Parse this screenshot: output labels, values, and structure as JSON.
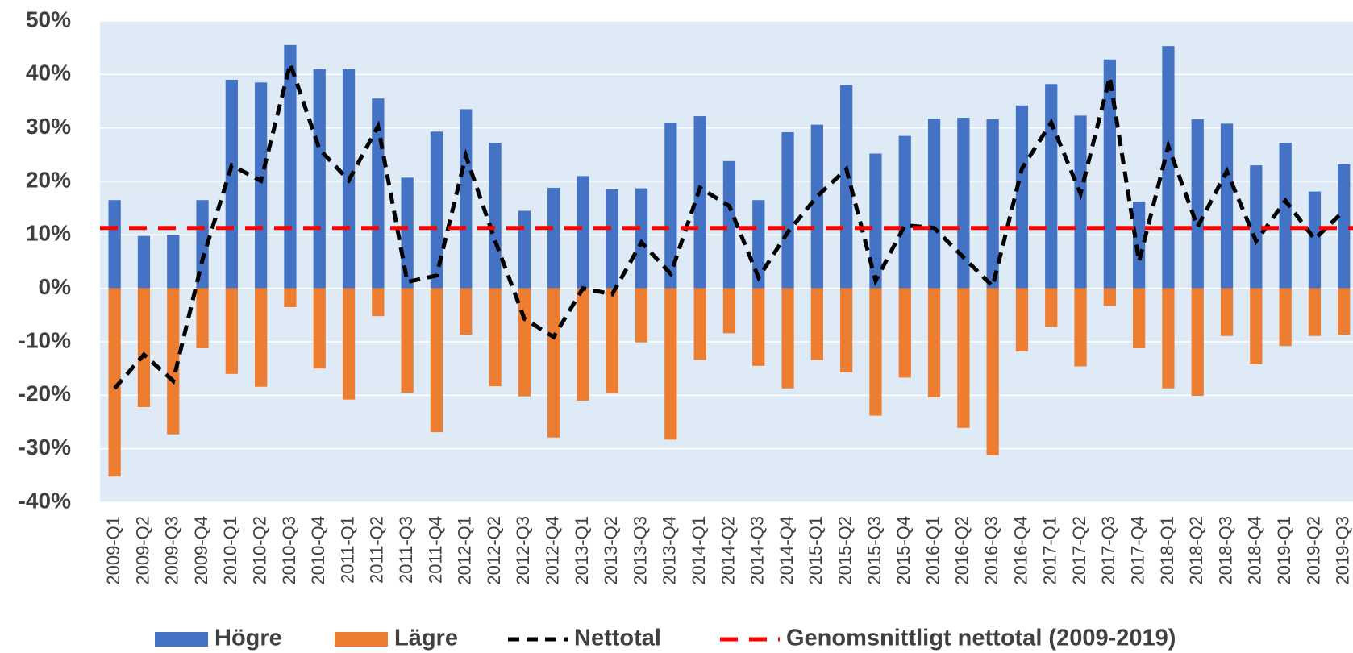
{
  "chart_data": {
    "type": "bar",
    "categories": [
      "2009-Q1",
      "2009-Q2",
      "2009-Q3",
      "2009-Q4",
      "2010-Q1",
      "2010-Q2",
      "2010-Q3",
      "2010-Q4",
      "2011-Q1",
      "2011-Q2",
      "2011-Q3",
      "2011-Q4",
      "2012-Q1",
      "2012-Q2",
      "2012-Q3",
      "2012-Q4",
      "2013-Q1",
      "2013-Q2",
      "2013-Q3",
      "2013-Q4",
      "2014-Q1",
      "2014-Q2",
      "2014-Q3",
      "2014-Q4",
      "2015-Q1",
      "2015-Q2",
      "2015-Q3",
      "2015-Q4",
      "2016-Q1",
      "2016-Q2",
      "2016-Q3",
      "2016-Q4",
      "2017-Q1",
      "2017-Q2",
      "2017-Q3",
      "2017-Q4",
      "2018-Q1",
      "2018-Q2",
      "2018-Q3",
      "2018-Q4",
      "2019-Q1",
      "2019-Q2",
      "2019-Q3"
    ],
    "series": [
      {
        "name": "Högre",
        "type": "bar",
        "color": "#4472c4",
        "values": [
          16.5,
          9.8,
          10,
          16.5,
          39,
          38.5,
          45.5,
          41,
          41,
          35.5,
          20.7,
          29.3,
          33.5,
          27.2,
          14.5,
          18.8,
          21,
          18.5,
          18.7,
          31,
          32.2,
          23.8,
          16.5,
          29.2,
          30.6,
          38,
          25.2,
          28.5,
          31.7,
          31.9,
          31.6,
          34.2,
          38.2,
          32.3,
          42.8,
          16.2,
          45.3,
          31.6,
          30.8,
          23,
          27.2,
          18.1,
          23.2
        ]
      },
      {
        "name": "Lägre",
        "type": "bar",
        "color": "#ed7d31",
        "values": [
          -35.2,
          -22.2,
          -27.3,
          -11.2,
          -16,
          -18.4,
          -3.5,
          -15,
          -20.8,
          -5.2,
          -19.5,
          -26.9,
          -8.7,
          -18.3,
          -20.2,
          -27.9,
          -21,
          -19.6,
          -10.1,
          -28.3,
          -13.4,
          -8.4,
          -14.5,
          -18.7,
          -13.4,
          -15.7,
          -23.8,
          -16.7,
          -20.4,
          -26.1,
          -31.2,
          -11.8,
          -7.2,
          -14.6,
          -3.3,
          -11.2,
          -18.7,
          -20.1,
          -8.9,
          -14.2,
          -10.8,
          -8.9,
          -8.7
        ]
      },
      {
        "name": "Nettotal",
        "type": "line",
        "dashed": true,
        "color": "#000000",
        "values": [
          -18.7,
          -12.4,
          -17.3,
          5.3,
          23,
          20.1,
          42,
          26,
          20.2,
          30.3,
          1.2,
          2.4,
          24.8,
          8.9,
          -5.7,
          -9.1,
          0,
          -1.1,
          8.6,
          2.7,
          18.8,
          15.4,
          2,
          10.5,
          17.2,
          22.3,
          1.4,
          11.8,
          11.3,
          5.8,
          0.4,
          22.4,
          31,
          17.7,
          39.5,
          5,
          26.6,
          11.5,
          21.9,
          8.8,
          16.4,
          9.2,
          14.5
        ]
      },
      {
        "name": "Genomsnittligt nettotal (2009-2019)",
        "type": "hline",
        "dashed": true,
        "color": "#ff0000",
        "value": 11.3
      }
    ],
    "ylim": [
      -40,
      50
    ],
    "yticks": [
      {
        "value": -40,
        "label": "-40%"
      },
      {
        "value": -30,
        "label": "-30%"
      },
      {
        "value": -20,
        "label": "-20%"
      },
      {
        "value": -10,
        "label": "-10%"
      },
      {
        "value": 0,
        "label": "0%"
      },
      {
        "value": 10,
        "label": "10%"
      },
      {
        "value": 20,
        "label": "20%"
      },
      {
        "value": 30,
        "label": "30%"
      },
      {
        "value": 40,
        "label": "40%"
      },
      {
        "value": 50,
        "label": "50%"
      }
    ],
    "grid": true,
    "background": "#deeaf6",
    "legend": "bottom"
  }
}
